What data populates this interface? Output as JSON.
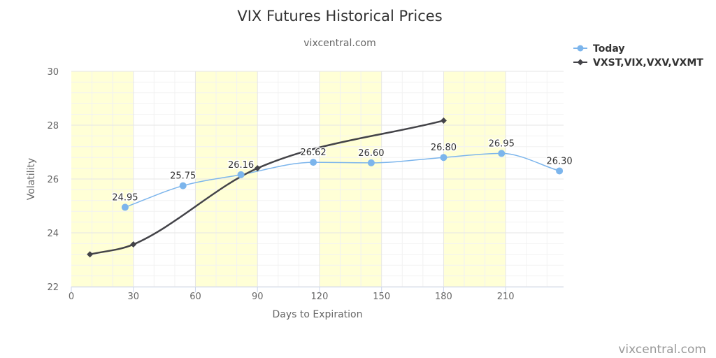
{
  "title": "VIX Futures Historical Prices",
  "subtitle": "vixcentral.com",
  "credit": "vixcentral.com",
  "colors": {
    "today": "#7cb5ec",
    "term": "#434348",
    "band": "#ffffd6",
    "grid": "#e6e6e6",
    "minor_grid": "#f2f2f2"
  },
  "chart_data": {
    "type": "line",
    "xlabel": "Days to Expiration",
    "ylabel": "Volatility",
    "xlim": [
      0,
      238
    ],
    "ylim": [
      22,
      30
    ],
    "x_ticks": [
      0,
      30,
      60,
      90,
      120,
      150,
      180,
      210
    ],
    "y_ticks": [
      22,
      24,
      26,
      28,
      30
    ],
    "bands": [
      [
        0,
        30
      ],
      [
        60,
        90
      ],
      [
        120,
        150
      ],
      [
        180,
        210
      ]
    ],
    "legend_position": "top-right",
    "series": [
      {
        "name": "Today",
        "marker": "circle",
        "smooth": true,
        "points": [
          {
            "x": 26,
            "y": 24.95,
            "label": "24.95"
          },
          {
            "x": 54,
            "y": 25.75,
            "label": "25.75"
          },
          {
            "x": 82,
            "y": 26.16,
            "label": "26.16"
          },
          {
            "x": 117,
            "y": 26.62,
            "label": "26.62"
          },
          {
            "x": 145,
            "y": 26.6,
            "label": "26.60"
          },
          {
            "x": 180,
            "y": 26.8,
            "label": "26.80"
          },
          {
            "x": 208,
            "y": 26.95,
            "label": "26.95"
          },
          {
            "x": 236,
            "y": 26.3,
            "label": "26.30"
          }
        ]
      },
      {
        "name": "VXST,VIX,VXV,VXMT",
        "marker": "diamond",
        "smooth": true,
        "points": [
          {
            "x": 9,
            "y": 23.2
          },
          {
            "x": 30,
            "y": 23.57
          },
          {
            "x": 90,
            "y": 26.4
          },
          {
            "x": 180,
            "y": 28.17
          }
        ]
      }
    ]
  }
}
